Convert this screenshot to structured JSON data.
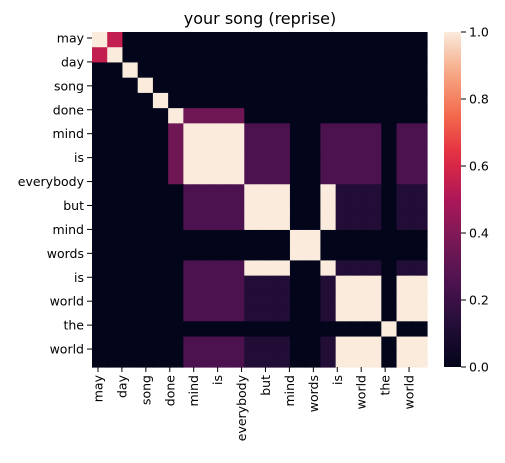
{
  "chart_data": {
    "type": "heatmap",
    "title": "your song (reprise)",
    "xlabel": "",
    "ylabel": "",
    "x_tick_labels": [
      "may",
      "day",
      "song",
      "done",
      "mind",
      "is",
      "everybody",
      "but",
      "mind",
      "words",
      "is",
      "world",
      "the",
      "world"
    ],
    "y_tick_labels": [
      "may",
      "day",
      "song",
      "done",
      "mind",
      "is",
      "everybody",
      "but",
      "mind",
      "words",
      "is",
      "world",
      "the",
      "world"
    ],
    "colorbar": {
      "range": [
        0.0,
        1.0
      ],
      "ticks": [
        "0.0",
        "0.2",
        "0.4",
        "0.6",
        "0.8",
        "1.0"
      ]
    },
    "colormap": "rocket",
    "grid": false,
    "tokens": [
      "may",
      "day",
      "song",
      "everybody",
      "but",
      "done",
      "mind",
      "mind",
      "mind",
      "mind",
      "is",
      "is",
      "is",
      "words",
      "words",
      "is",
      "world",
      "world",
      "world",
      "the",
      "world",
      "world"
    ]
  }
}
